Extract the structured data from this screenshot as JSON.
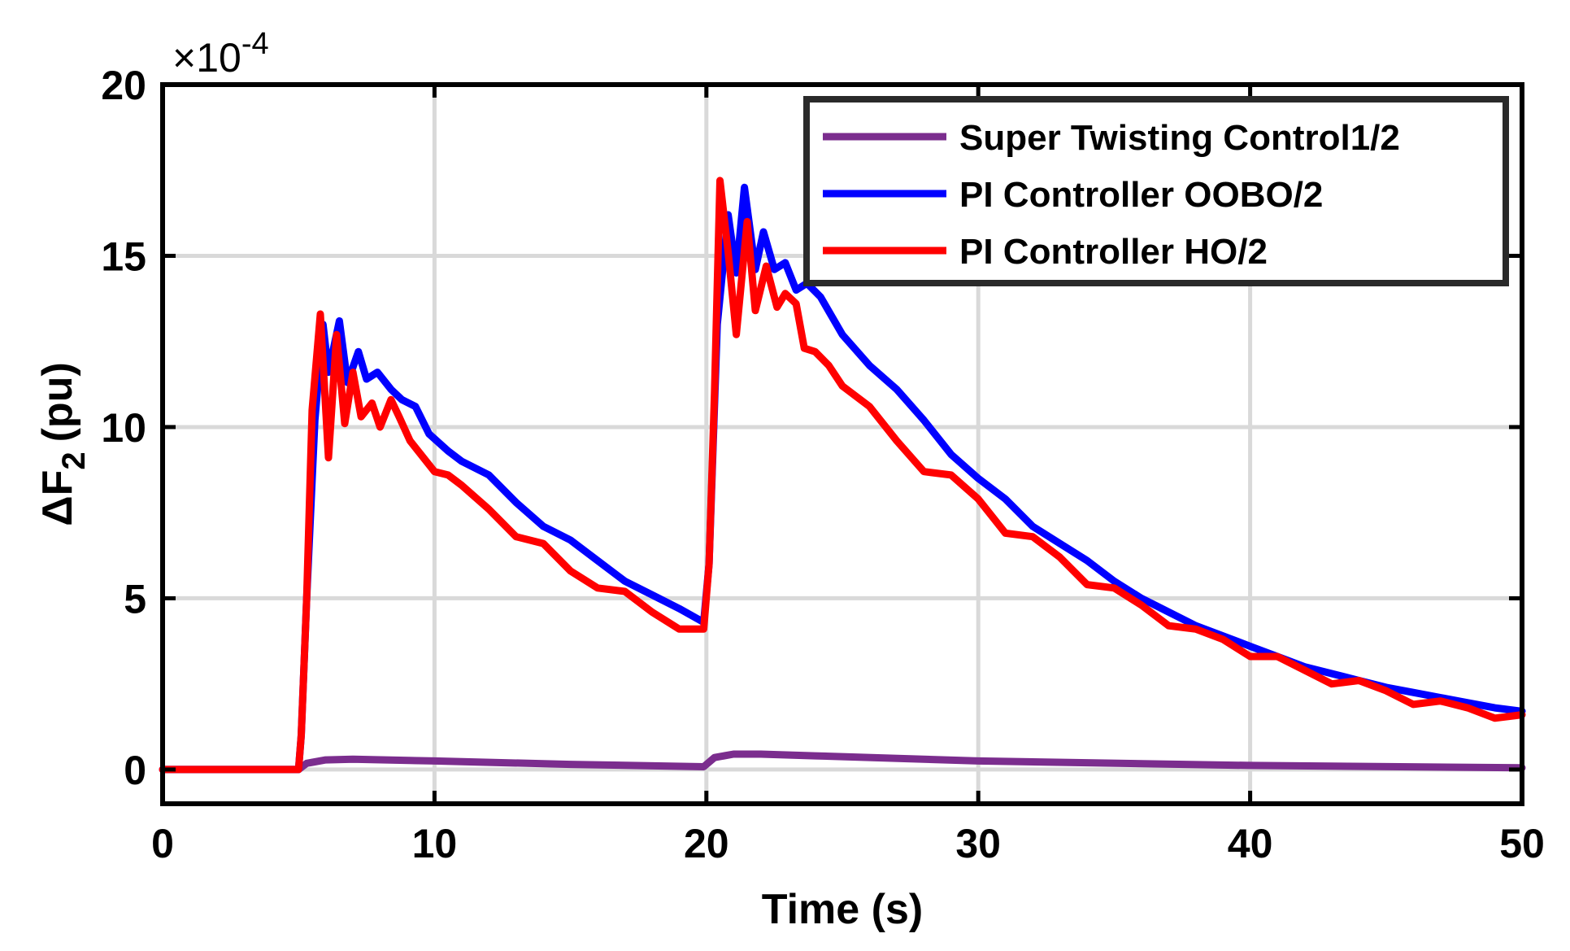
{
  "chart_data": {
    "type": "line",
    "title": "",
    "xlabel": "Time (s)",
    "ylabel": "ΔF",
    "ylabel_subscript": "2",
    "ylabel_unit": "(pu)",
    "y_exponent_prefix": "×10",
    "y_exponent_power": "-4",
    "xlim": [
      0,
      50
    ],
    "ylim": [
      -1,
      20
    ],
    "xticks": [
      0,
      10,
      20,
      30,
      40,
      50
    ],
    "yticks": [
      0,
      5,
      10,
      15,
      20
    ],
    "xtick_labels": [
      "0",
      "10",
      "20",
      "30",
      "40",
      "50"
    ],
    "ytick_labels": [
      "0",
      "5",
      "10",
      "15",
      "20"
    ],
    "grid": true,
    "legend_position": "top-right",
    "series": [
      {
        "name": "Super Twisting Control1/2",
        "color": "#7B2D8E",
        "x": [
          0,
          5,
          5.3,
          6,
          7,
          10,
          15,
          19.9,
          20.3,
          21,
          22,
          24,
          30,
          40,
          50
        ],
        "y": [
          0,
          0,
          0.18,
          0.28,
          0.3,
          0.25,
          0.15,
          0.08,
          0.35,
          0.45,
          0.45,
          0.4,
          0.25,
          0.12,
          0.05
        ]
      },
      {
        "name": "PI Controller OOBO/2",
        "color": "#0000FF",
        "x": [
          0,
          5,
          5.1,
          5.3,
          5.6,
          5.9,
          6.1,
          6.5,
          6.8,
          7.2,
          7.5,
          7.9,
          8.4,
          8.8,
          9.3,
          9.8,
          10.5,
          11,
          12,
          13,
          14,
          15,
          16,
          17,
          18,
          19,
          19.9,
          20.1,
          20.4,
          20.8,
          21.1,
          21.4,
          21.8,
          22.1,
          22.5,
          22.9,
          23.3,
          23.7,
          24.2,
          25,
          26,
          27,
          28,
          29,
          30,
          31,
          32,
          33,
          34,
          35,
          36,
          37,
          38,
          39,
          40,
          41,
          42,
          43,
          44,
          45,
          46,
          47,
          48,
          49,
          50
        ],
        "y": [
          0,
          0,
          1,
          5,
          10.2,
          13,
          11.6,
          13.1,
          11.3,
          12.2,
          11.4,
          11.6,
          11.1,
          10.8,
          10.6,
          9.8,
          9.3,
          9.0,
          8.6,
          7.8,
          7.1,
          6.7,
          6.1,
          5.5,
          5.1,
          4.7,
          4.3,
          6,
          13,
          16.2,
          14.5,
          17.0,
          14.6,
          15.7,
          14.6,
          14.8,
          14.0,
          14.2,
          13.8,
          12.7,
          11.8,
          11.1,
          10.2,
          9.2,
          8.5,
          7.9,
          7.1,
          6.6,
          6.1,
          5.5,
          5.0,
          4.6,
          4.2,
          3.9,
          3.6,
          3.3,
          3.0,
          2.8,
          2.6,
          2.4,
          2.25,
          2.1,
          1.95,
          1.8,
          1.7
        ]
      },
      {
        "name": "PI Controller HO/2",
        "color": "#FF0000",
        "x": [
          0,
          5,
          5.1,
          5.3,
          5.5,
          5.8,
          6.1,
          6.4,
          6.7,
          7.0,
          7.3,
          7.7,
          8.0,
          8.4,
          8.7,
          9.1,
          9.4,
          10,
          10.5,
          11,
          12,
          13,
          14,
          15,
          16,
          17,
          18,
          19,
          19.9,
          20.1,
          20.3,
          20.5,
          20.8,
          21.1,
          21.5,
          21.8,
          22.2,
          22.6,
          22.9,
          23.3,
          23.6,
          24.0,
          24.5,
          25,
          26,
          27,
          28,
          29,
          30,
          31,
          32,
          33,
          34,
          35,
          36,
          37,
          38,
          39,
          40,
          41,
          42,
          43,
          44,
          45,
          46,
          47,
          48,
          49,
          50
        ],
        "y": [
          0,
          0,
          1,
          5,
          10.5,
          13.3,
          9.1,
          12.7,
          10.1,
          11.6,
          10.3,
          10.7,
          10.0,
          10.8,
          10.3,
          9.6,
          9.3,
          8.7,
          8.6,
          8.3,
          7.6,
          6.8,
          6.6,
          5.8,
          5.3,
          5.2,
          4.6,
          4.1,
          4.1,
          6,
          11,
          17.2,
          15.1,
          12.7,
          16.0,
          13.4,
          14.7,
          13.5,
          13.9,
          13.6,
          12.3,
          12.2,
          11.8,
          11.2,
          10.6,
          9.6,
          8.7,
          8.6,
          7.9,
          6.9,
          6.8,
          6.2,
          5.4,
          5.3,
          4.8,
          4.2,
          4.1,
          3.8,
          3.3,
          3.3,
          2.9,
          2.5,
          2.6,
          2.3,
          1.9,
          2.0,
          1.8,
          1.5,
          1.6
        ]
      }
    ]
  }
}
